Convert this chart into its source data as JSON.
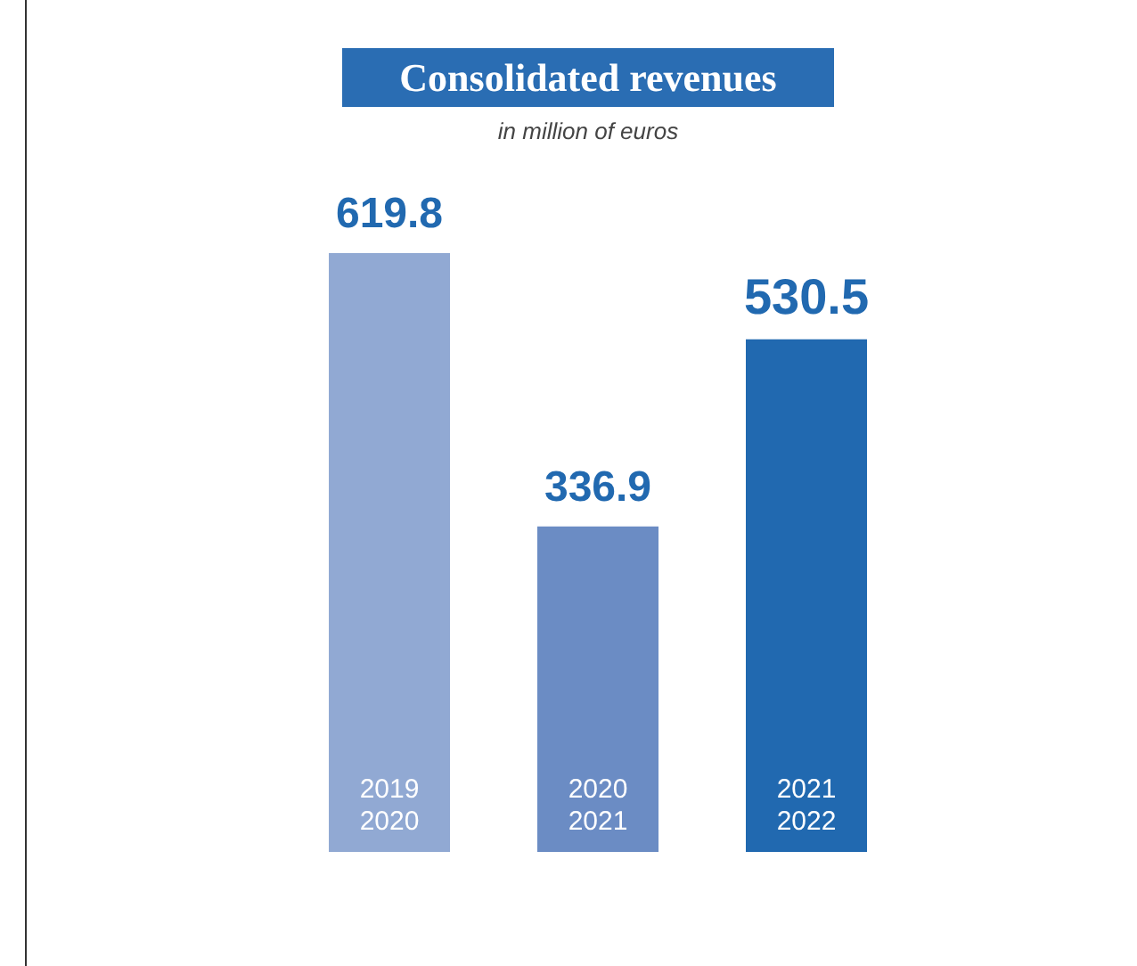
{
  "chart_data": {
    "type": "bar",
    "title": "Consolidated revenues",
    "subtitle": "in million of euros",
    "categories": [
      "2019\n2020",
      "2020\n2021",
      "2021\n2022"
    ],
    "values": [
      619.8,
      336.9,
      530.5
    ],
    "colors": [
      "#91a9d3",
      "#6b8cc4",
      "#2169b0"
    ],
    "data_labels": true
  }
}
